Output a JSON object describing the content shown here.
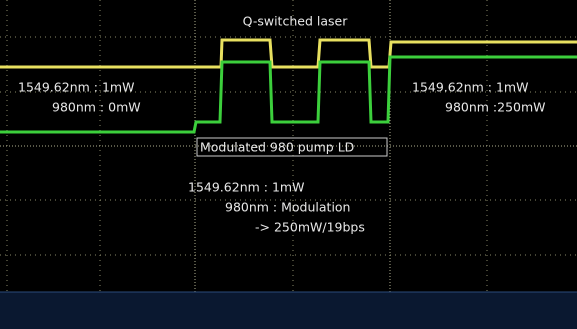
{
  "title": "Q-switched laser",
  "left_note": [
    "1549.62nm : 1mW",
    "980nm : 0mW"
  ],
  "right_note": [
    "1549.62nm : 1mW",
    "980nm :250mW"
  ],
  "pump_label": "Modulated 980 pump LD",
  "center_note": [
    "1549.62nm : 1mW",
    "980nm : Modulation",
    "-> 250mW/19bps"
  ]
}
